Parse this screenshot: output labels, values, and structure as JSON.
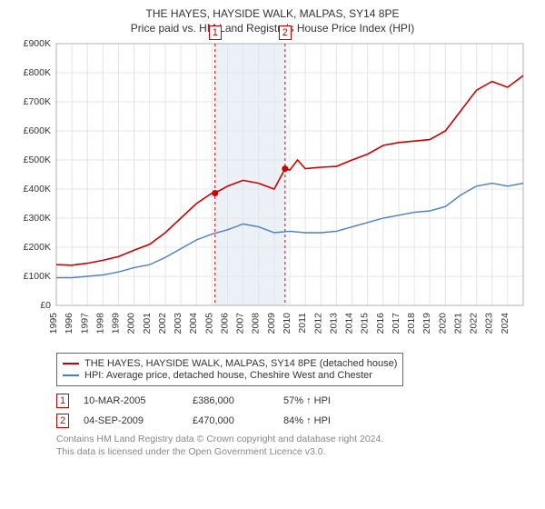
{
  "title_main": "THE HAYES, HAYSIDE WALK, MALPAS, SY14 8PE",
  "title_sub": "Price paid vs. HM Land Registry's House Price Index (HPI)",
  "chart": {
    "type": "line",
    "background_color": "#ffffff",
    "grid_color": "#e4e4e4",
    "border_color": "#b0b0b0",
    "axis_text_color": "#333333",
    "axis_fontsize": 10.5,
    "y": {
      "min": 0,
      "max": 900000,
      "tick_step": 100000,
      "ticks": [
        "£0",
        "£100K",
        "£200K",
        "£300K",
        "£400K",
        "£500K",
        "£600K",
        "£700K",
        "£800K",
        "£900K"
      ]
    },
    "x": {
      "min": 1995,
      "max": 2025,
      "tick_step": 1,
      "ticks": [
        "1995",
        "1996",
        "1997",
        "1998",
        "1999",
        "2000",
        "2001",
        "2002",
        "2003",
        "2004",
        "2005",
        "2006",
        "2007",
        "2008",
        "2009",
        "2010",
        "2011",
        "2012",
        "2013",
        "2014",
        "2015",
        "2016",
        "2017",
        "2018",
        "2019",
        "2020",
        "2021",
        "2022",
        "2023",
        "2024"
      ]
    },
    "shade_band": {
      "x_start": 2005.2,
      "x_end": 2009.7,
      "color": "#ecf1f8"
    },
    "dashed_lines": [
      {
        "x": 2005.2,
        "color": "#cc0000",
        "label": "1"
      },
      {
        "x": 2009.7,
        "color": "#cc0000",
        "label": "2"
      }
    ],
    "series": [
      {
        "name": "THE HAYES, HAYSIDE WALK, MALPAS, SY14 8PE (detached house)",
        "color": "#cc0000",
        "line_width": 1.6,
        "points": [
          [
            1995,
            140000
          ],
          [
            1996,
            138000
          ],
          [
            1997,
            145000
          ],
          [
            1998,
            155000
          ],
          [
            1999,
            168000
          ],
          [
            2000,
            190000
          ],
          [
            2001,
            210000
          ],
          [
            2002,
            250000
          ],
          [
            2003,
            300000
          ],
          [
            2004,
            350000
          ],
          [
            2005,
            386000
          ],
          [
            2005.5,
            395000
          ],
          [
            2006,
            410000
          ],
          [
            2007,
            430000
          ],
          [
            2008,
            420000
          ],
          [
            2009,
            400000
          ],
          [
            2009.7,
            470000
          ],
          [
            2010,
            465000
          ],
          [
            2010.5,
            500000
          ],
          [
            2011,
            470000
          ],
          [
            2012,
            475000
          ],
          [
            2013,
            478000
          ],
          [
            2014,
            500000
          ],
          [
            2015,
            520000
          ],
          [
            2016,
            550000
          ],
          [
            2017,
            560000
          ],
          [
            2018,
            565000
          ],
          [
            2019,
            570000
          ],
          [
            2020,
            600000
          ],
          [
            2021,
            670000
          ],
          [
            2022,
            740000
          ],
          [
            2023,
            770000
          ],
          [
            2024,
            750000
          ],
          [
            2025,
            790000
          ]
        ],
        "markers": [
          {
            "x": 2005.2,
            "y": 386000,
            "color": "#cc0000"
          },
          {
            "x": 2009.7,
            "y": 470000,
            "color": "#cc0000"
          }
        ]
      },
      {
        "name": "HPI: Average price, detached house, Cheshire West and Chester",
        "color": "#4a7ec8",
        "line_width": 1.4,
        "points": [
          [
            1995,
            95000
          ],
          [
            1996,
            95000
          ],
          [
            1997,
            100000
          ],
          [
            1998,
            105000
          ],
          [
            1999,
            115000
          ],
          [
            2000,
            130000
          ],
          [
            2001,
            140000
          ],
          [
            2002,
            165000
          ],
          [
            2003,
            195000
          ],
          [
            2004,
            225000
          ],
          [
            2005,
            245000
          ],
          [
            2006,
            260000
          ],
          [
            2007,
            280000
          ],
          [
            2008,
            270000
          ],
          [
            2009,
            250000
          ],
          [
            2010,
            255000
          ],
          [
            2011,
            250000
          ],
          [
            2012,
            250000
          ],
          [
            2013,
            255000
          ],
          [
            2014,
            270000
          ],
          [
            2015,
            285000
          ],
          [
            2016,
            300000
          ],
          [
            2017,
            310000
          ],
          [
            2018,
            320000
          ],
          [
            2019,
            325000
          ],
          [
            2020,
            340000
          ],
          [
            2021,
            380000
          ],
          [
            2022,
            410000
          ],
          [
            2023,
            420000
          ],
          [
            2024,
            410000
          ],
          [
            2025,
            420000
          ]
        ]
      }
    ]
  },
  "legend": {
    "items": [
      {
        "color": "#cc0000",
        "label": "THE HAYES, HAYSIDE WALK, MALPAS, SY14 8PE (detached house)"
      },
      {
        "color": "#4a7ec8",
        "label": "HPI: Average price, detached house, Cheshire West and Chester"
      }
    ]
  },
  "events": [
    {
      "num": "1",
      "date": "10-MAR-2005",
      "price": "£386,000",
      "vs": "57% ↑ HPI"
    },
    {
      "num": "2",
      "date": "04-SEP-2009",
      "price": "£470,000",
      "vs": "84% ↑ HPI"
    }
  ],
  "credits_line1": "Contains HM Land Registry data © Crown copyright and database right 2024.",
  "credits_line2": "This data is licensed under the Open Government Licence v3.0."
}
